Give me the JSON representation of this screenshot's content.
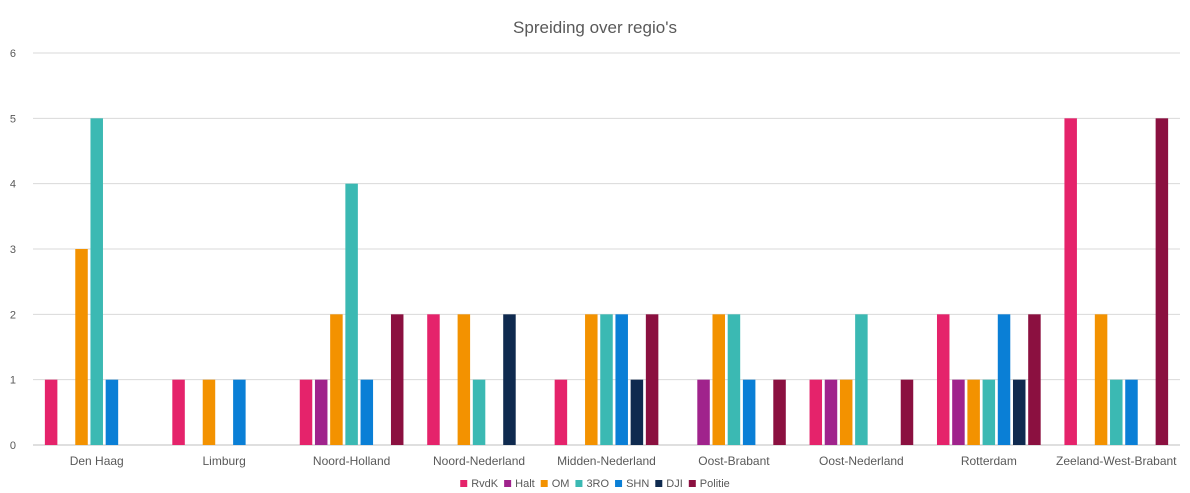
{
  "chart_data": {
    "type": "bar",
    "title": "Spreiding over regio's",
    "xlabel": "",
    "ylabel": "",
    "ylim": [
      0,
      6
    ],
    "yticks": [
      0,
      1,
      2,
      3,
      4,
      5,
      6
    ],
    "grid": true,
    "legend_position": "bottom",
    "categories": [
      "Den Haag",
      "Limburg",
      "Noord-Holland",
      "Noord-Nederland",
      "Midden-Nederland",
      "Oost-Brabant",
      "Oost-Nederland",
      "Rotterdam",
      "Zeeland-West-Brabant"
    ],
    "series": [
      {
        "name": "RvdK",
        "color": "#e5236b",
        "values": [
          1,
          1,
          1,
          2,
          1,
          0,
          1,
          2,
          5
        ]
      },
      {
        "name": "Halt",
        "color": "#a0238c",
        "values": [
          0,
          0,
          1,
          0,
          0,
          1,
          1,
          1,
          0
        ]
      },
      {
        "name": "OM",
        "color": "#f39200",
        "values": [
          3,
          1,
          2,
          2,
          2,
          2,
          1,
          1,
          2
        ]
      },
      {
        "name": "3RO",
        "color": "#3bb9b3",
        "values": [
          5,
          0,
          4,
          1,
          2,
          2,
          2,
          1,
          1
        ]
      },
      {
        "name": "SHN",
        "color": "#0a7fd6",
        "values": [
          1,
          1,
          1,
          0,
          2,
          1,
          0,
          2,
          1
        ]
      },
      {
        "name": "DJI",
        "color": "#0f2a4f",
        "values": [
          0,
          0,
          0,
          2,
          1,
          0,
          0,
          1,
          0
        ]
      },
      {
        "name": "Politie",
        "color": "#8b1040",
        "values": [
          0,
          0,
          2,
          0,
          2,
          1,
          1,
          2,
          5
        ]
      }
    ]
  }
}
